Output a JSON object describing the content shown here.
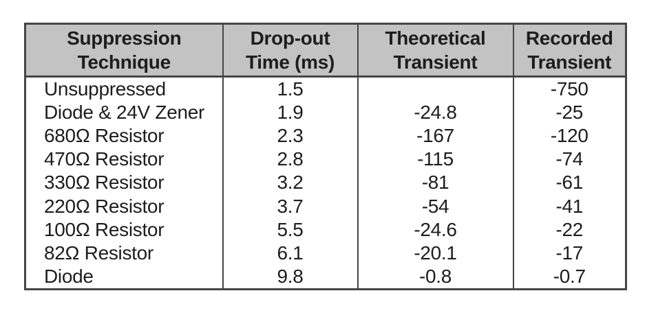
{
  "chart_data": {
    "type": "table",
    "title": "",
    "columns": [
      {
        "id": "technique",
        "line1": "Suppression",
        "line2": "Technique"
      },
      {
        "id": "dropout",
        "line1": "Drop-out",
        "line2": "Time (ms)"
      },
      {
        "id": "theoretical",
        "line1": "Theoretical",
        "line2": "Transient"
      },
      {
        "id": "recorded",
        "line1": "Recorded",
        "line2": "Transient"
      }
    ],
    "rows": [
      {
        "technique": "Unsuppressed",
        "dropout": "1.5",
        "theoretical": "",
        "recorded": "-750"
      },
      {
        "technique": "Diode & 24V Zener",
        "dropout": "1.9",
        "theoretical": "-24.8",
        "recorded": "-25"
      },
      {
        "technique": "680Ω Resistor",
        "dropout": "2.3",
        "theoretical": "-167",
        "recorded": "-120"
      },
      {
        "technique": "470Ω Resistor",
        "dropout": "2.8",
        "theoretical": "-115",
        "recorded": "-74"
      },
      {
        "technique": "330Ω Resistor",
        "dropout": "3.2",
        "theoretical": "-81",
        "recorded": "-61"
      },
      {
        "technique": "220Ω Resistor",
        "dropout": "3.7",
        "theoretical": "-54",
        "recorded": "-41"
      },
      {
        "technique": "100Ω Resistor",
        "dropout": "5.5",
        "theoretical": "-24.6",
        "recorded": "-22"
      },
      {
        "technique": "82Ω Resistor",
        "dropout": "6.1",
        "theoretical": "-20.1",
        "recorded": "-17"
      },
      {
        "technique": "Diode",
        "dropout": "9.8",
        "theoretical": "-0.8",
        "recorded": "-0.7"
      }
    ],
    "layout": {
      "grid": "vertical-lines-only",
      "header_rows": 1
    },
    "colors": {
      "header_bg": "#c3c3c3",
      "border": "#454545",
      "text": "#1d1d1d",
      "background": "#ffffff"
    }
  }
}
